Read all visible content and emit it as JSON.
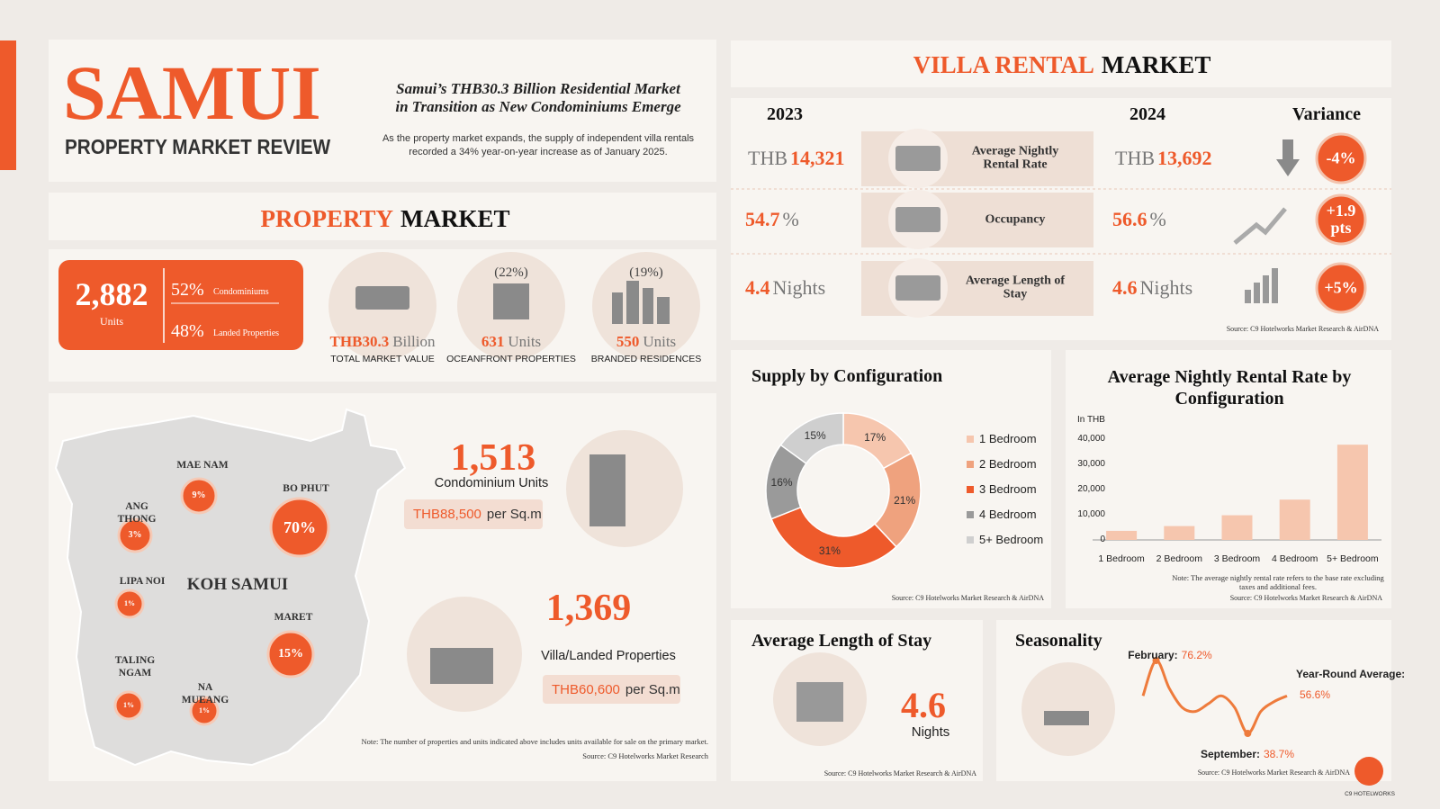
{
  "header": {
    "title": "SAMUI",
    "subtitle": "PROPERTY MARKET REVIEW",
    "headline": [
      "Samui’s THB30.3 Billion Residential Market",
      "in Transition as New Condominiums Emerge"
    ],
    "intro": "As the property market expands, the supply of independent villa rentals recorded a 34% year-on-year increase as of January 2025."
  },
  "property_market": {
    "title_accent": "PROPERTY",
    "title_rest": "MARKET",
    "total_units": "2,882",
    "units_label": "Units",
    "split": [
      {
        "share": "52%",
        "label": "Condominiums"
      },
      {
        "share": "48%",
        "label": "Landed Properties"
      }
    ],
    "stats": [
      {
        "amount": "THB30.3",
        "unit": "Billion",
        "label": "TOTAL MARKET VALUE"
      },
      {
        "share": "(22%)",
        "amount": "631",
        "unit": "Units",
        "label": "OCEANFRONT PROPERTIES"
      },
      {
        "share": "(19%)",
        "amount": "550",
        "unit": "Units",
        "label": "BRANDED RESIDENCES"
      }
    ]
  },
  "map": {
    "island": "KOH SAMUI",
    "areas": [
      {
        "name": "MAE NAM",
        "share": "9%"
      },
      {
        "name": "ANG THONG",
        "share": "3%"
      },
      {
        "name": "BO PHUT",
        "share": "70%"
      },
      {
        "name": "LIPA NOI",
        "share": "1%"
      },
      {
        "name": "MARET",
        "share": "15%"
      },
      {
        "name": "TALING NGAM",
        "share": "1%"
      },
      {
        "name": "NA MUEANG",
        "share": "1%"
      }
    ]
  },
  "supply": [
    {
      "count": "1,513",
      "label": "Condominium Units",
      "price": "THB88,500",
      "per": "per Sq.m"
    },
    {
      "count": "1,369",
      "label": "Villa/Landed Properties",
      "price": "THB60,600",
      "per": "per Sq.m"
    }
  ],
  "supply_note": "Note: The number of properties and units indicated above includes units available for sale on the primary market.",
  "supply_source": "Source: C9 Hotelworks Market Research",
  "villa_rental": {
    "title_accent": "VILLA RENTAL",
    "title_rest": "MARKET",
    "headers": [
      "2023",
      "2024",
      "Variance"
    ],
    "rows": [
      {
        "metric": "Average Nightly Rental Rate",
        "y2023": [
          {
            "text": "THB",
            "accent": false
          },
          {
            "text": "14,321",
            "accent": true
          }
        ],
        "y2024": [
          {
            "text": "THB",
            "accent": false
          },
          {
            "text": "13,692",
            "accent": true
          }
        ],
        "variance": "-4%"
      },
      {
        "metric": "Occupancy",
        "y2023": [
          {
            "text": "54.7",
            "accent": true
          },
          {
            "text": "%",
            "accent": false
          }
        ],
        "y2024": [
          {
            "text": "56.6",
            "accent": true
          },
          {
            "text": "%",
            "accent": false
          }
        ],
        "variance": "+1.9 pts"
      },
      {
        "metric": "Average Length of Stay",
        "y2023": [
          {
            "text": "4.4",
            "accent": true
          },
          {
            "text": "Nights",
            "accent": false
          }
        ],
        "y2024": [
          {
            "text": "4.6",
            "accent": true
          },
          {
            "text": "Nights",
            "accent": false
          }
        ],
        "variance": "+5%"
      }
    ],
    "source": "Source: C9 Hotelworks Market Research & AirDNA"
  },
  "chart_data": [
    {
      "type": "pie",
      "title": "Supply by Configuration",
      "categories": [
        "1 Bedroom",
        "2 Bedroom",
        "3 Bedroom",
        "4 Bedroom",
        "5+ Bedroom"
      ],
      "values": [
        17,
        21,
        31,
        16,
        15
      ],
      "value_labels": [
        "17%",
        "21%",
        "31%",
        "16%",
        "15%"
      ],
      "colors": [
        "#f6c6ae",
        "#efa27e",
        "#ee5a2b",
        "#9a9a9a",
        "#cfcfcf"
      ],
      "source": "Source: C9 Hotelworks Market Research & AirDNA"
    },
    {
      "type": "bar",
      "title": "Average Nightly Rental Rate by Configuration",
      "y_label": "In THB",
      "categories": [
        "1 Bedroom",
        "2 Bedroom",
        "3 Bedroom",
        "4 Bedroom",
        "5+ Bedroom"
      ],
      "values": [
        3600,
        5500,
        9800,
        16000,
        37800
      ],
      "color": "#f6c6ae",
      "ylim": [
        0,
        40000
      ],
      "yticks": [
        0,
        {
          "value": 10000,
          "label": "10,000"
        },
        {
          "value": 20000,
          "label": "20,000"
        },
        {
          "value": 30000,
          "label": "30,000"
        },
        {
          "value": 40000,
          "label": "40,000"
        }
      ],
      "note": "Note: The average nightly rental rate refers to the base rate excluding taxes and additional fees.",
      "source": "Source: C9 Hotelworks Market Research & AirDNA"
    },
    {
      "type": "line",
      "title": "Seasonality",
      "values": [
        58,
        76.2,
        62,
        52,
        50,
        54,
        58,
        52,
        38.7,
        50,
        55,
        58
      ],
      "color": "#ee7b3c",
      "annotations": [
        {
          "label": "February:",
          "value": "76.2%"
        },
        {
          "label": "Year-Round Average:",
          "value": "56.6%"
        },
        {
          "label": "September:",
          "value": "38.7%"
        }
      ],
      "source": "Source: C9 Hotelworks Market Research & AirDNA"
    }
  ],
  "alos": {
    "title": "Average Length of Stay",
    "value": "4.6",
    "unit": "Nights",
    "source": "Source: C9 Hotelworks Market Research & AirDNA"
  },
  "logo": "C9 HOTELWORKS"
}
